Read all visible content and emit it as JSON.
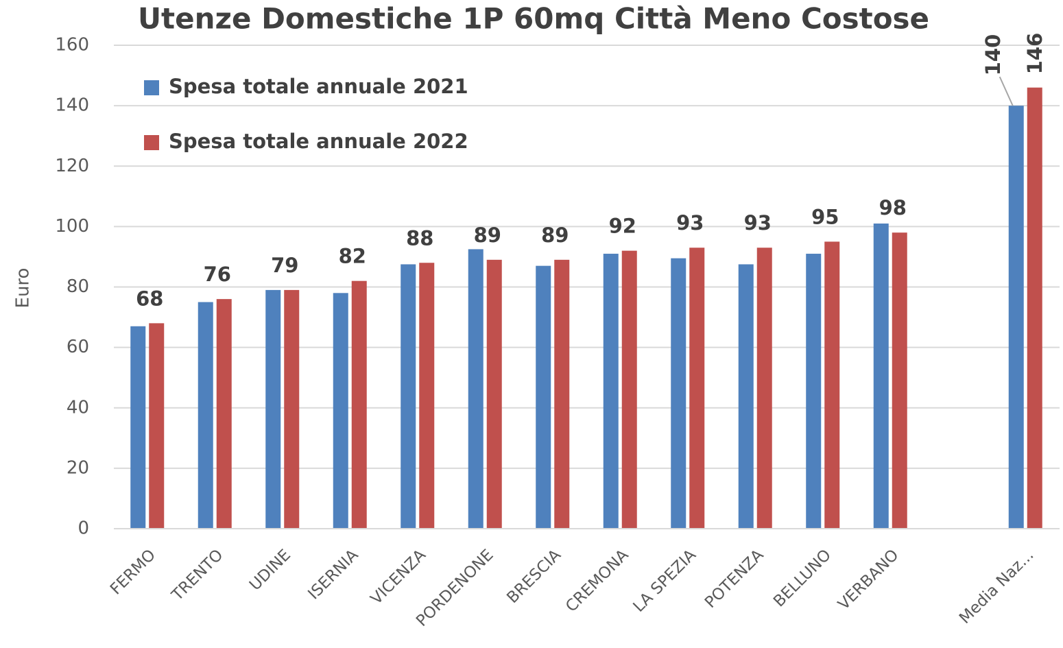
{
  "chart_data": {
    "type": "bar",
    "title": "Utenze Domestiche 1P 60mq Città Meno Costose",
    "y_label": "Euro",
    "categories": [
      "FERMO",
      "TRENTO",
      "UDINE",
      "ISERNIA",
      "VICENZA",
      "PORDENONE",
      "BRESCIA",
      "CREMONA",
      "LA SPEZIA",
      "POTENZA",
      "BELLUNO",
      "VERBANO",
      null,
      "Media Naz..."
    ],
    "series": [
      {
        "name": "Spesa totale annuale 2021",
        "color": "#4f81bd",
        "values": [
          67,
          75,
          79,
          78,
          87.5,
          92.5,
          87,
          91,
          89.5,
          87.5,
          91,
          101,
          null,
          140
        ],
        "value_labels": [
          null,
          null,
          null,
          null,
          null,
          null,
          null,
          null,
          null,
          null,
          null,
          null,
          null,
          "140"
        ]
      },
      {
        "name": "Spesa totale annuale 2022",
        "color": "#c0504d",
        "values": [
          68,
          76,
          79,
          82,
          88,
          89,
          89,
          92,
          93,
          93,
          95,
          98,
          null,
          146
        ],
        "data_labels": true
      }
    ],
    "ylim": [
      0,
      160
    ],
    "yticks": [
      0,
      20,
      40,
      60,
      80,
      100,
      120,
      140,
      160
    ],
    "grid": true,
    "legend": "top-left"
  }
}
